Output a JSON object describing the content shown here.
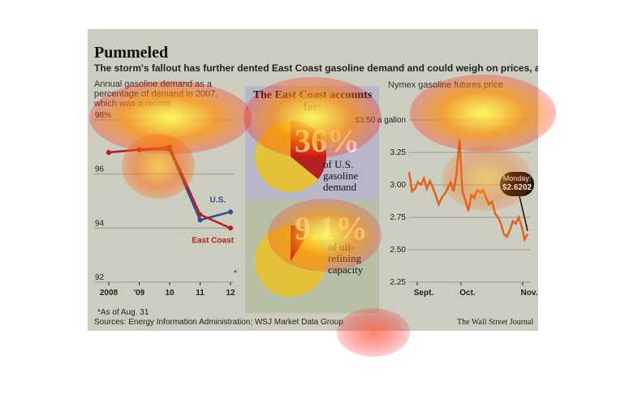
{
  "title": "Pummeled",
  "subtitle": "The storm's fallout has further dented East Coast gasoline demand and could weigh on prices, analysts say.",
  "footnote": "*As of Aug. 31",
  "sources": "Sources: Energy Information Administration; WSJ Market Data Group",
  "credit": "The Wall Street Journal",
  "colors": {
    "us": "#2a4f8f",
    "east_coast": "#b52020",
    "futures": "#e0641a",
    "pie_yellow": "#e3c23a",
    "pie_red": "#b52020"
  },
  "chart_data": [
    {
      "type": "line",
      "title": "Annual gasoline demand as a percentage of demand in 2007, which was a record",
      "categories": [
        "2008",
        "'09",
        "10",
        "11",
        "12"
      ],
      "series": [
        {
          "name": "U.S.",
          "values": [
            96.8,
            96.9,
            96.9,
            94.3,
            94.6
          ]
        },
        {
          "name": "East Coast",
          "values": [
            96.8,
            96.9,
            97.0,
            94.5,
            94.0
          ]
        }
      ],
      "ylim": [
        92,
        98
      ],
      "yticks": [
        "98%",
        "96",
        "94",
        "92"
      ],
      "annotation": "*",
      "grid": true
    },
    {
      "type": "pie",
      "title": "The East Coast accounts for:",
      "items": [
        {
          "value": "36%",
          "label": "of U.S. gasoline demand",
          "share": 0.36
        },
        {
          "value": "9.1%",
          "label": "of oil-refining capacity",
          "share": 0.091
        }
      ]
    },
    {
      "type": "line",
      "title": "Nymex gasoline futures price",
      "yticks": [
        "$3.50 a gallon",
        "3.25",
        "3.00",
        "2.75",
        "2.50",
        "2.25"
      ],
      "ylim": [
        2.25,
        3.5
      ],
      "xticks": [
        "Sept.",
        "Oct.",
        "Nov."
      ],
      "callout": {
        "label": "Monday:",
        "value": "$2.6202"
      },
      "series": [
        {
          "values": [
            3.1,
            2.95,
            2.97,
            3.02,
            3.0,
            3.05,
            2.97,
            3.03,
            2.98,
            2.92,
            2.85,
            2.9,
            2.93,
            2.97,
            3.02,
            2.95,
            3.08,
            3.35,
            2.95,
            2.88,
            2.8,
            2.92,
            2.9,
            2.96,
            2.94,
            2.96,
            2.9,
            2.85,
            2.87,
            2.78,
            2.75,
            2.7,
            2.62,
            2.6,
            2.65,
            2.72,
            2.7,
            2.75,
            2.68,
            2.58,
            2.62
          ]
        }
      ],
      "grid": true
    }
  ]
}
